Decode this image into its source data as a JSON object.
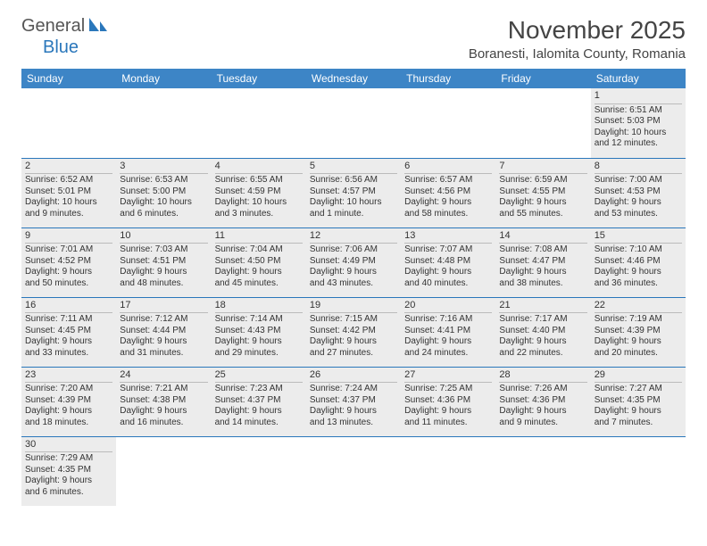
{
  "logo": {
    "part1": "General",
    "part2": "Blue"
  },
  "title": "November 2025",
  "location": "Boranesti, Ialomita County, Romania",
  "colors": {
    "header_bg": "#3d85c6",
    "header_fg": "#ffffff",
    "cell_bg": "#ececec",
    "rule": "#2a77bb",
    "logo_accent": "#2a77bb"
  },
  "weekdays": [
    "Sunday",
    "Monday",
    "Tuesday",
    "Wednesday",
    "Thursday",
    "Friday",
    "Saturday"
  ],
  "weeks": [
    [
      null,
      null,
      null,
      null,
      null,
      null,
      {
        "n": "1",
        "sunrise": "Sunrise: 6:51 AM",
        "sunset": "Sunset: 5:03 PM",
        "day1": "Daylight: 10 hours",
        "day2": "and 12 minutes."
      }
    ],
    [
      {
        "n": "2",
        "sunrise": "Sunrise: 6:52 AM",
        "sunset": "Sunset: 5:01 PM",
        "day1": "Daylight: 10 hours",
        "day2": "and 9 minutes."
      },
      {
        "n": "3",
        "sunrise": "Sunrise: 6:53 AM",
        "sunset": "Sunset: 5:00 PM",
        "day1": "Daylight: 10 hours",
        "day2": "and 6 minutes."
      },
      {
        "n": "4",
        "sunrise": "Sunrise: 6:55 AM",
        "sunset": "Sunset: 4:59 PM",
        "day1": "Daylight: 10 hours",
        "day2": "and 3 minutes."
      },
      {
        "n": "5",
        "sunrise": "Sunrise: 6:56 AM",
        "sunset": "Sunset: 4:57 PM",
        "day1": "Daylight: 10 hours",
        "day2": "and 1 minute."
      },
      {
        "n": "6",
        "sunrise": "Sunrise: 6:57 AM",
        "sunset": "Sunset: 4:56 PM",
        "day1": "Daylight: 9 hours",
        "day2": "and 58 minutes."
      },
      {
        "n": "7",
        "sunrise": "Sunrise: 6:59 AM",
        "sunset": "Sunset: 4:55 PM",
        "day1": "Daylight: 9 hours",
        "day2": "and 55 minutes."
      },
      {
        "n": "8",
        "sunrise": "Sunrise: 7:00 AM",
        "sunset": "Sunset: 4:53 PM",
        "day1": "Daylight: 9 hours",
        "day2": "and 53 minutes."
      }
    ],
    [
      {
        "n": "9",
        "sunrise": "Sunrise: 7:01 AM",
        "sunset": "Sunset: 4:52 PM",
        "day1": "Daylight: 9 hours",
        "day2": "and 50 minutes."
      },
      {
        "n": "10",
        "sunrise": "Sunrise: 7:03 AM",
        "sunset": "Sunset: 4:51 PM",
        "day1": "Daylight: 9 hours",
        "day2": "and 48 minutes."
      },
      {
        "n": "11",
        "sunrise": "Sunrise: 7:04 AM",
        "sunset": "Sunset: 4:50 PM",
        "day1": "Daylight: 9 hours",
        "day2": "and 45 minutes."
      },
      {
        "n": "12",
        "sunrise": "Sunrise: 7:06 AM",
        "sunset": "Sunset: 4:49 PM",
        "day1": "Daylight: 9 hours",
        "day2": "and 43 minutes."
      },
      {
        "n": "13",
        "sunrise": "Sunrise: 7:07 AM",
        "sunset": "Sunset: 4:48 PM",
        "day1": "Daylight: 9 hours",
        "day2": "and 40 minutes."
      },
      {
        "n": "14",
        "sunrise": "Sunrise: 7:08 AM",
        "sunset": "Sunset: 4:47 PM",
        "day1": "Daylight: 9 hours",
        "day2": "and 38 minutes."
      },
      {
        "n": "15",
        "sunrise": "Sunrise: 7:10 AM",
        "sunset": "Sunset: 4:46 PM",
        "day1": "Daylight: 9 hours",
        "day2": "and 36 minutes."
      }
    ],
    [
      {
        "n": "16",
        "sunrise": "Sunrise: 7:11 AM",
        "sunset": "Sunset: 4:45 PM",
        "day1": "Daylight: 9 hours",
        "day2": "and 33 minutes."
      },
      {
        "n": "17",
        "sunrise": "Sunrise: 7:12 AM",
        "sunset": "Sunset: 4:44 PM",
        "day1": "Daylight: 9 hours",
        "day2": "and 31 minutes."
      },
      {
        "n": "18",
        "sunrise": "Sunrise: 7:14 AM",
        "sunset": "Sunset: 4:43 PM",
        "day1": "Daylight: 9 hours",
        "day2": "and 29 minutes."
      },
      {
        "n": "19",
        "sunrise": "Sunrise: 7:15 AM",
        "sunset": "Sunset: 4:42 PM",
        "day1": "Daylight: 9 hours",
        "day2": "and 27 minutes."
      },
      {
        "n": "20",
        "sunrise": "Sunrise: 7:16 AM",
        "sunset": "Sunset: 4:41 PM",
        "day1": "Daylight: 9 hours",
        "day2": "and 24 minutes."
      },
      {
        "n": "21",
        "sunrise": "Sunrise: 7:17 AM",
        "sunset": "Sunset: 4:40 PM",
        "day1": "Daylight: 9 hours",
        "day2": "and 22 minutes."
      },
      {
        "n": "22",
        "sunrise": "Sunrise: 7:19 AM",
        "sunset": "Sunset: 4:39 PM",
        "day1": "Daylight: 9 hours",
        "day2": "and 20 minutes."
      }
    ],
    [
      {
        "n": "23",
        "sunrise": "Sunrise: 7:20 AM",
        "sunset": "Sunset: 4:39 PM",
        "day1": "Daylight: 9 hours",
        "day2": "and 18 minutes."
      },
      {
        "n": "24",
        "sunrise": "Sunrise: 7:21 AM",
        "sunset": "Sunset: 4:38 PM",
        "day1": "Daylight: 9 hours",
        "day2": "and 16 minutes."
      },
      {
        "n": "25",
        "sunrise": "Sunrise: 7:23 AM",
        "sunset": "Sunset: 4:37 PM",
        "day1": "Daylight: 9 hours",
        "day2": "and 14 minutes."
      },
      {
        "n": "26",
        "sunrise": "Sunrise: 7:24 AM",
        "sunset": "Sunset: 4:37 PM",
        "day1": "Daylight: 9 hours",
        "day2": "and 13 minutes."
      },
      {
        "n": "27",
        "sunrise": "Sunrise: 7:25 AM",
        "sunset": "Sunset: 4:36 PM",
        "day1": "Daylight: 9 hours",
        "day2": "and 11 minutes."
      },
      {
        "n": "28",
        "sunrise": "Sunrise: 7:26 AM",
        "sunset": "Sunset: 4:36 PM",
        "day1": "Daylight: 9 hours",
        "day2": "and 9 minutes."
      },
      {
        "n": "29",
        "sunrise": "Sunrise: 7:27 AM",
        "sunset": "Sunset: 4:35 PM",
        "day1": "Daylight: 9 hours",
        "day2": "and 7 minutes."
      }
    ],
    [
      {
        "n": "30",
        "sunrise": "Sunrise: 7:29 AM",
        "sunset": "Sunset: 4:35 PM",
        "day1": "Daylight: 9 hours",
        "day2": "and 6 minutes."
      },
      null,
      null,
      null,
      null,
      null,
      null
    ]
  ]
}
